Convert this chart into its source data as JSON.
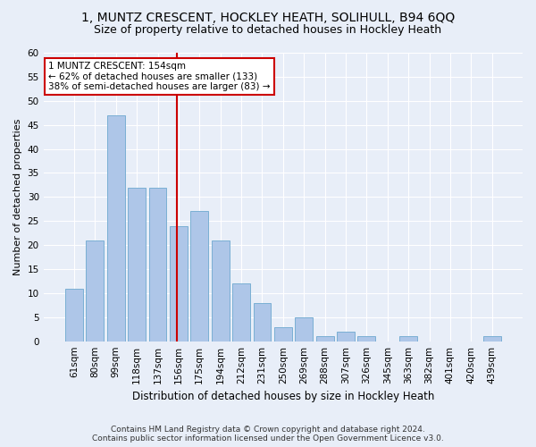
{
  "title": "1, MUNTZ CRESCENT, HOCKLEY HEATH, SOLIHULL, B94 6QQ",
  "subtitle": "Size of property relative to detached houses in Hockley Heath",
  "xlabel": "Distribution of detached houses by size in Hockley Heath",
  "ylabel": "Number of detached properties",
  "categories": [
    "61sqm",
    "80sqm",
    "99sqm",
    "118sqm",
    "137sqm",
    "156sqm",
    "175sqm",
    "194sqm",
    "212sqm",
    "231sqm",
    "250sqm",
    "269sqm",
    "288sqm",
    "307sqm",
    "326sqm",
    "345sqm",
    "363sqm",
    "382sqm",
    "401sqm",
    "420sqm",
    "439sqm"
  ],
  "values": [
    11,
    21,
    47,
    32,
    32,
    24,
    27,
    21,
    12,
    8,
    3,
    5,
    1,
    2,
    1,
    0,
    1,
    0,
    0,
    0,
    1
  ],
  "bar_color": "#aec6e8",
  "bar_edgecolor": "#7aafd4",
  "annotation_line1": "1 MUNTZ CRESCENT: 154sqm",
  "annotation_line2": "← 62% of detached houses are smaller (133)",
  "annotation_line3": "38% of semi-detached houses are larger (83) →",
  "annotation_box_facecolor": "#ffffff",
  "annotation_box_edgecolor": "#cc0000",
  "vline_color": "#cc0000",
  "vline_x": 4.93,
  "ylim": [
    0,
    60
  ],
  "yticks": [
    0,
    5,
    10,
    15,
    20,
    25,
    30,
    35,
    40,
    45,
    50,
    55,
    60
  ],
  "footer_line1": "Contains HM Land Registry data © Crown copyright and database right 2024.",
  "footer_line2": "Contains public sector information licensed under the Open Government Licence v3.0.",
  "bg_color": "#e8eef8",
  "grid_color": "#ffffff",
  "title_fontsize": 10,
  "subtitle_fontsize": 9,
  "ylabel_fontsize": 8,
  "xlabel_fontsize": 8.5,
  "tick_fontsize": 7.5,
  "annotation_fontsize": 7.5,
  "footer_fontsize": 6.5
}
